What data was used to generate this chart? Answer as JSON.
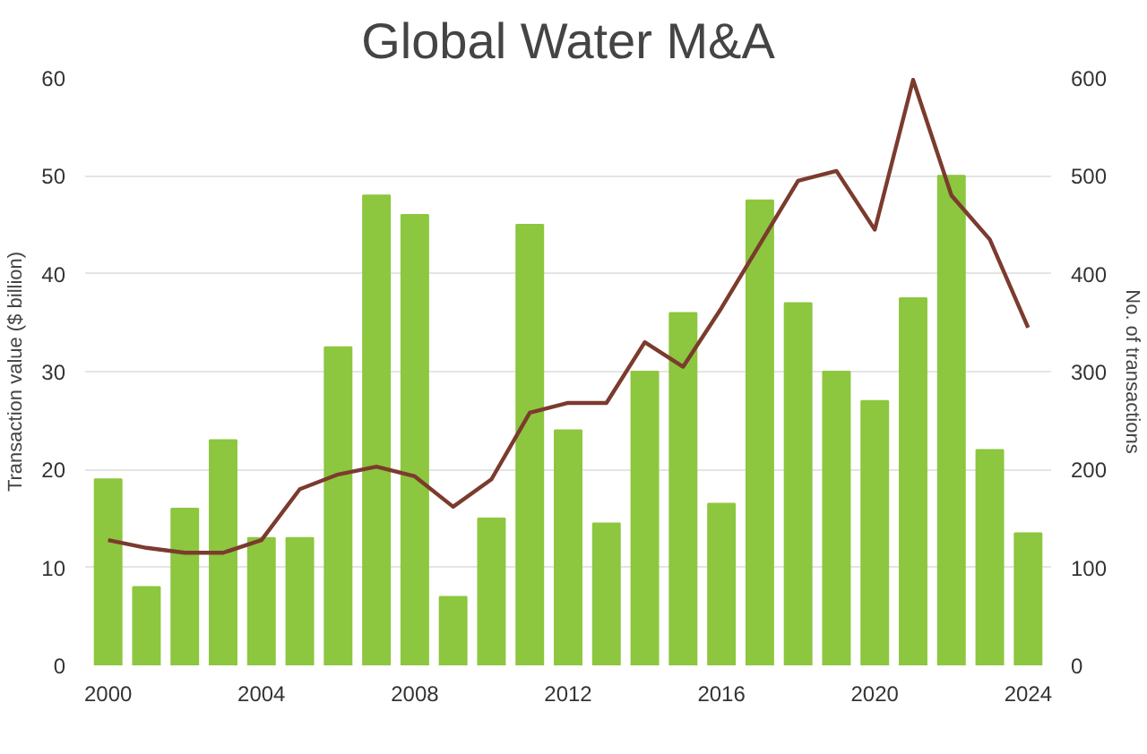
{
  "chart_data": {
    "type": "bar",
    "title": "Global Water M&A",
    "ylabel": "Transaction value ($ billion)",
    "y2label": "No. of transactions",
    "x": [
      2000,
      2001,
      2002,
      2003,
      2004,
      2005,
      2006,
      2007,
      2008,
      2009,
      2010,
      2011,
      2012,
      2013,
      2014,
      2015,
      2016,
      2017,
      2018,
      2019,
      2020,
      2021,
      2022,
      2023,
      2024
    ],
    "series": [
      {
        "color": "#8dc63f",
        "values": [
          19,
          8,
          16,
          23,
          13,
          13,
          32.5,
          48,
          46,
          7,
          15,
          45,
          24,
          14.5,
          30,
          36,
          16.5,
          47.5,
          37,
          30,
          27,
          37.5,
          50,
          22,
          13.5
        ]
      },
      {
        "type": "line",
        "axis": "y2",
        "color": "#7b3b2e",
        "values": [
          128,
          120,
          115,
          115,
          128,
          180,
          195,
          203,
          193,
          162,
          190,
          258,
          268,
          268,
          330,
          305,
          365,
          430,
          495,
          505,
          445,
          598,
          480,
          435,
          345
        ]
      }
    ],
    "xlim": [
      1999.4,
      2024.6
    ],
    "xticks": [
      2000,
      2004,
      2008,
      2012,
      2016,
      2020,
      2024
    ],
    "ylim": [
      0,
      60
    ],
    "yticks": [
      0,
      10,
      20,
      30,
      40,
      50,
      60
    ],
    "y2lim": [
      0,
      600
    ],
    "y2ticks": [
      0,
      100,
      200,
      300,
      400,
      500,
      600
    ],
    "grid": "y"
  }
}
